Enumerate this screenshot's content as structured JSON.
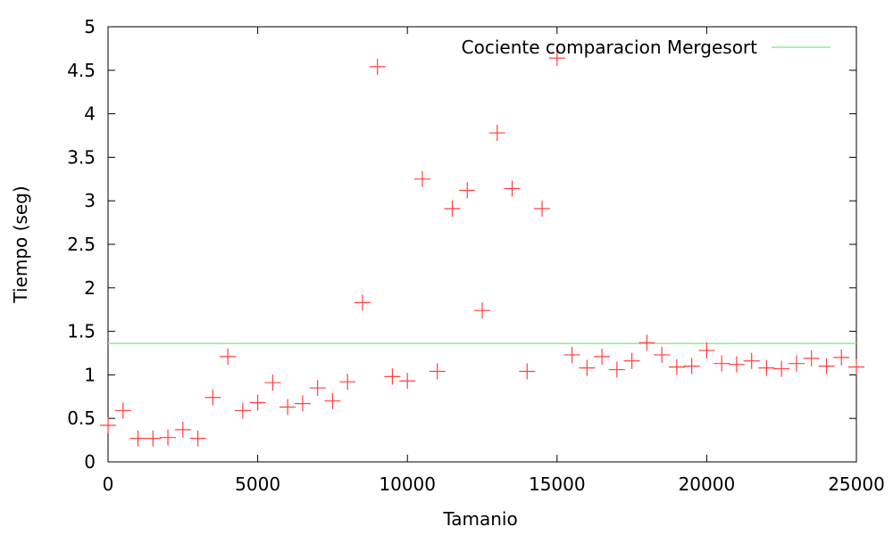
{
  "chart_data": {
    "type": "scatter",
    "title": "",
    "xlabel": "Tamanio",
    "ylabel": "Tiempo (seg)",
    "xlim": [
      0,
      25000
    ],
    "ylim": [
      0,
      5
    ],
    "x_ticks": [
      "0",
      "5000",
      "10000",
      "15000",
      "20000",
      "25000"
    ],
    "y_ticks": [
      "0",
      "0.5",
      "1",
      "1.5",
      "2",
      "2.5",
      "3",
      "3.5",
      "4",
      "4.5",
      "5"
    ],
    "grid": false,
    "legend": {
      "position": "top-right",
      "label": "Cociente comparacion Mergesort"
    },
    "reference_line": {
      "y": 1.36,
      "color": "#90ee90"
    },
    "marker": "plus",
    "marker_color": "#ff4040",
    "series": [
      {
        "x": [
          0,
          500,
          1000,
          1500,
          2000,
          2500,
          3000,
          3500,
          4000,
          4500,
          5000,
          5500,
          6000,
          6500,
          7000,
          7500,
          8000,
          8500,
          9000,
          9500,
          10000,
          10500,
          11000,
          11500,
          12000,
          12500,
          13000,
          13500,
          14000,
          14500,
          15000,
          15500,
          16000,
          16500,
          17000,
          17500,
          18000,
          18500,
          19000,
          19500,
          20000,
          20500,
          21000,
          21500,
          22000,
          22500,
          23000,
          23500,
          24000,
          24500,
          25000
        ],
        "y": [
          0.42,
          0.59,
          0.27,
          0.27,
          0.28,
          0.37,
          0.27,
          0.74,
          1.21,
          0.59,
          0.68,
          0.91,
          0.63,
          0.67,
          0.85,
          0.7,
          0.92,
          1.83,
          4.54,
          0.98,
          0.93,
          3.25,
          1.04,
          2.91,
          3.12,
          1.74,
          3.78,
          3.14,
          1.04,
          2.91,
          4.64,
          1.23,
          1.08,
          1.21,
          1.06,
          1.16,
          1.37,
          1.23,
          1.09,
          1.1,
          1.28,
          1.13,
          1.12,
          1.16,
          1.08,
          1.07,
          1.13,
          1.19,
          1.1,
          1.2,
          1.09
        ]
      }
    ]
  }
}
